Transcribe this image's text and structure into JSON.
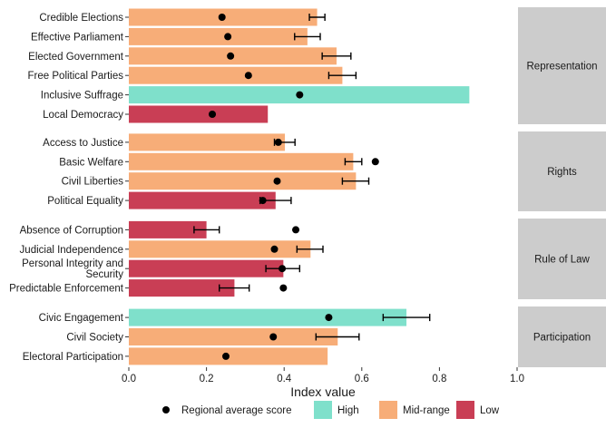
{
  "chart_data": {
    "type": "bar",
    "orientation": "horizontal",
    "xlabel": "Index value",
    "xlim": [
      0,
      1
    ],
    "xticks": [
      "0.0",
      "0.2",
      "0.4",
      "0.6",
      "0.8",
      "1.0"
    ],
    "grid": false,
    "facet_position": "right",
    "legend_position": "bottom",
    "colors": {
      "High": "#7fe0cb",
      "Mid-range": "#f7ad78",
      "Low": "#c93e55",
      "point": "#000000",
      "strip": "#cccccc"
    },
    "legend": {
      "point_label": "Regional average score",
      "levels": [
        "High",
        "Mid-range",
        "Low"
      ]
    },
    "facets": [
      {
        "name": "Representation",
        "rows": [
          {
            "label": [
              "Credible Elections"
            ],
            "value": 0.485,
            "level": "Mid-range",
            "point": 0.24,
            "err": [
              0.465,
              0.505
            ]
          },
          {
            "label": [
              "Effective Parliament"
            ],
            "value": 0.46,
            "level": "Mid-range",
            "point": 0.255,
            "err": [
              0.427,
              0.493
            ]
          },
          {
            "label": [
              "Elected Government"
            ],
            "value": 0.535,
            "level": "Mid-range",
            "point": 0.262,
            "err": [
              0.498,
              0.572
            ]
          },
          {
            "label": [
              "Free Political Parties"
            ],
            "value": 0.55,
            "level": "Mid-range",
            "point": 0.308,
            "err": [
              0.515,
              0.585
            ]
          },
          {
            "label": [
              "Inclusive Suffrage"
            ],
            "value": 0.877,
            "level": "High",
            "point": 0.44,
            "err": null
          },
          {
            "label": [
              "Local Democracy"
            ],
            "value": 0.358,
            "level": "Low",
            "point": 0.215,
            "err": null
          }
        ]
      },
      {
        "name": "Rights",
        "rows": [
          {
            "label": [
              "Access to Justice"
            ],
            "value": 0.402,
            "level": "Mid-range",
            "point": 0.385,
            "err": [
              0.375,
              0.428
            ]
          },
          {
            "label": [
              "Basic Welfare"
            ],
            "value": 0.578,
            "level": "Mid-range",
            "point": 0.635,
            "err": [
              0.557,
              0.6
            ]
          },
          {
            "label": [
              "Civil Liberties"
            ],
            "value": 0.585,
            "level": "Mid-range",
            "point": 0.382,
            "err": [
              0.55,
              0.618
            ]
          },
          {
            "label": [
              "Political Equality"
            ],
            "value": 0.378,
            "level": "Low",
            "point": 0.345,
            "err": [
              0.338,
              0.418
            ]
          }
        ]
      },
      {
        "name": "Rule of Law",
        "rows": [
          {
            "label": [
              "Absence of Corruption"
            ],
            "value": 0.2,
            "level": "Low",
            "point": 0.43,
            "err": [
              0.168,
              0.233
            ]
          },
          {
            "label": [
              "Judicial Independence"
            ],
            "value": 0.468,
            "level": "Mid-range",
            "point": 0.375,
            "err": [
              0.433,
              0.5
            ]
          },
          {
            "label": [
              "Personal Integrity and",
              "Security"
            ],
            "value": 0.398,
            "level": "Low",
            "point": 0.395,
            "err": [
              0.353,
              0.44
            ]
          },
          {
            "label": [
              "Predictable Enforcement"
            ],
            "value": 0.272,
            "level": "Low",
            "point": 0.398,
            "err": [
              0.233,
              0.31
            ]
          }
        ]
      },
      {
        "name": "Participation",
        "rows": [
          {
            "label": [
              "Civic Engagement"
            ],
            "value": 0.715,
            "level": "High",
            "point": 0.515,
            "err": [
              0.655,
              0.775
            ]
          },
          {
            "label": [
              "Civil Society"
            ],
            "value": 0.538,
            "level": "Mid-range",
            "point": 0.372,
            "err": [
              0.482,
              0.593
            ]
          },
          {
            "label": [
              "Electoral Participation"
            ],
            "value": 0.512,
            "level": "Mid-range",
            "point": 0.25,
            "err": null
          }
        ]
      }
    ]
  }
}
